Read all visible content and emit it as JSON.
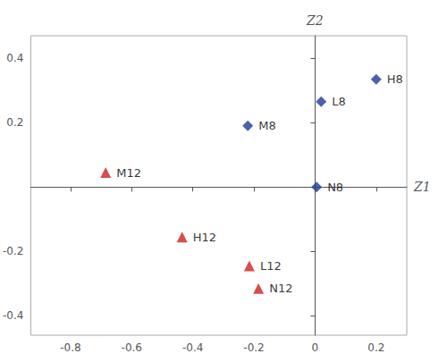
{
  "chart_data": {
    "type": "scatter",
    "xlabel": "Z1",
    "ylabel": "Z2",
    "series": [
      {
        "color": "#1f3a93",
        "marker": "diamond",
        "labels": [
          "H8",
          "L8",
          "M8",
          "N8"
        ],
        "x": [
          0.2,
          0.02,
          -0.22,
          0.005
        ],
        "y": [
          0.335,
          0.265,
          0.19,
          0.0
        ]
      },
      {
        "color": "#cc2222",
        "marker": "triangle",
        "labels": [
          "M12",
          "H12",
          "L12",
          "N12"
        ],
        "x": [
          -0.685,
          -0.435,
          -0.215,
          -0.185
        ],
        "y": [
          0.045,
          -0.155,
          -0.245,
          -0.315
        ]
      }
    ],
    "xlim": [
      -0.93,
      0.3
    ],
    "ylim": [
      -0.46,
      0.47
    ],
    "xticks": [
      -0.8,
      -0.6,
      -0.4,
      -0.2,
      0,
      0.2
    ],
    "yticks": [
      -0.4,
      -0.2,
      0.2,
      0.4
    ],
    "grid": false
  }
}
